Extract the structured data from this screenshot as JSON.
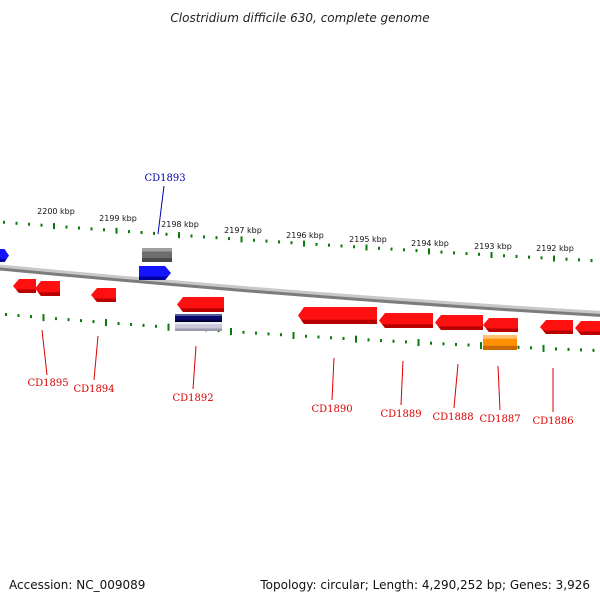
{
  "title": "Clostridium difficile 630, complete genome",
  "footer": {
    "accession": "Accession: NC_009089",
    "summary": "Topology: circular; Length: 4,290,252 bp; Genes: 3,926"
  },
  "colors": {
    "forward_gene": "#1414ff",
    "reverse_gene": "#ff1010",
    "label_forward": "#0000aa",
    "label_reverse": "#dd0000",
    "tick": "#0a7a0a",
    "backbone": "#808080",
    "gray_feature": "#6e6e6e",
    "navy_feature": "#0a0a6e",
    "orange_feature": "#ff9000"
  },
  "scale_labels": [
    "2200 kbp",
    "2199 kbp",
    "2198 kbp",
    "2197 kbp",
    "2196 kbp",
    "2195 kbp",
    "2194 kbp",
    "2193 kbp",
    "2192 kbp"
  ],
  "gene_labels": [
    {
      "name": "CD1893",
      "strand": "forward"
    },
    {
      "name": "CD1895",
      "strand": "reverse"
    },
    {
      "name": "CD1894",
      "strand": "reverse"
    },
    {
      "name": "CD1892",
      "strand": "reverse"
    },
    {
      "name": "CD1890",
      "strand": "reverse"
    },
    {
      "name": "CD1889",
      "strand": "reverse"
    },
    {
      "name": "CD1888",
      "strand": "reverse"
    },
    {
      "name": "CD1887",
      "strand": "reverse"
    },
    {
      "name": "CD1886",
      "strand": "reverse"
    }
  ]
}
